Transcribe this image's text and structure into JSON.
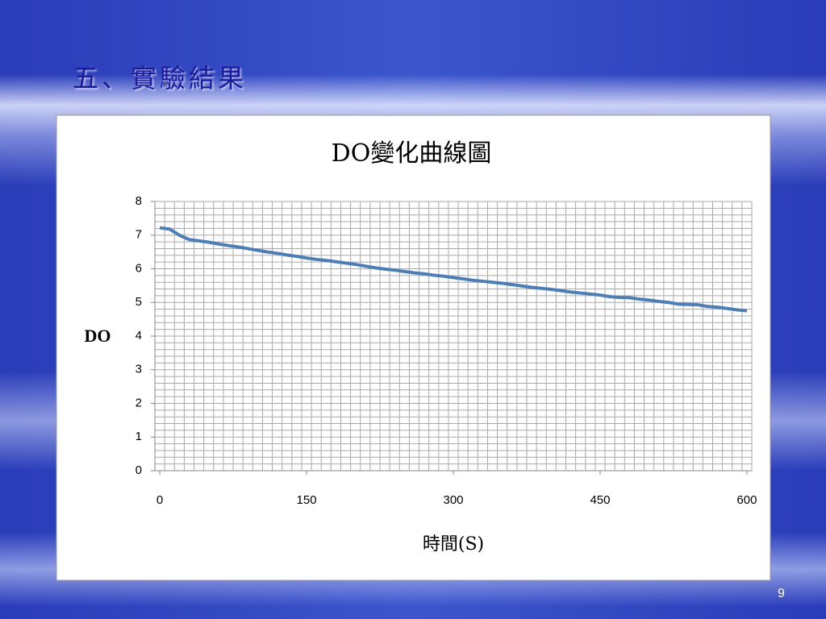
{
  "slide_title": "五、實驗結果",
  "page_number": "9",
  "chart_data": {
    "type": "line",
    "title": "DO變化曲線圖",
    "x_label": "時間(S)",
    "y_label": "DO",
    "x": [
      0,
      10,
      20,
      30,
      40,
      50,
      60,
      70,
      80,
      90,
      100,
      110,
      120,
      130,
      140,
      150,
      160,
      170,
      180,
      190,
      200,
      210,
      220,
      230,
      240,
      250,
      260,
      270,
      280,
      290,
      300,
      310,
      320,
      330,
      340,
      350,
      360,
      370,
      380,
      390,
      400,
      410,
      420,
      430,
      440,
      450,
      460,
      470,
      480,
      490,
      500,
      510,
      520,
      530,
      540,
      550,
      560,
      570,
      580,
      590,
      600
    ],
    "series": [
      {
        "color": "#4a7ebb",
        "values": [
          7.22,
          7.18,
          7.0,
          6.87,
          6.83,
          6.79,
          6.74,
          6.69,
          6.65,
          6.6,
          6.55,
          6.5,
          6.46,
          6.41,
          6.37,
          6.32,
          6.28,
          6.25,
          6.21,
          6.17,
          6.13,
          6.08,
          6.03,
          5.99,
          5.96,
          5.92,
          5.88,
          5.85,
          5.81,
          5.78,
          5.74,
          5.7,
          5.66,
          5.63,
          5.6,
          5.57,
          5.53,
          5.49,
          5.45,
          5.42,
          5.39,
          5.35,
          5.31,
          5.28,
          5.25,
          5.22,
          5.17,
          5.15,
          5.14,
          5.1,
          5.07,
          5.03,
          5.0,
          4.95,
          4.94,
          4.93,
          4.88,
          4.86,
          4.82,
          4.78,
          4.75
        ]
      }
    ],
    "xlim": [
      -5,
      605
    ],
    "xticks": [
      0,
      150,
      300,
      450,
      600
    ],
    "ylim": [
      0,
      8
    ],
    "yticks": [
      0,
      1,
      2,
      3,
      4,
      5,
      6,
      7,
      8
    ],
    "grid": true,
    "x_grid_step": 10,
    "y_grid_step": 0.2
  }
}
